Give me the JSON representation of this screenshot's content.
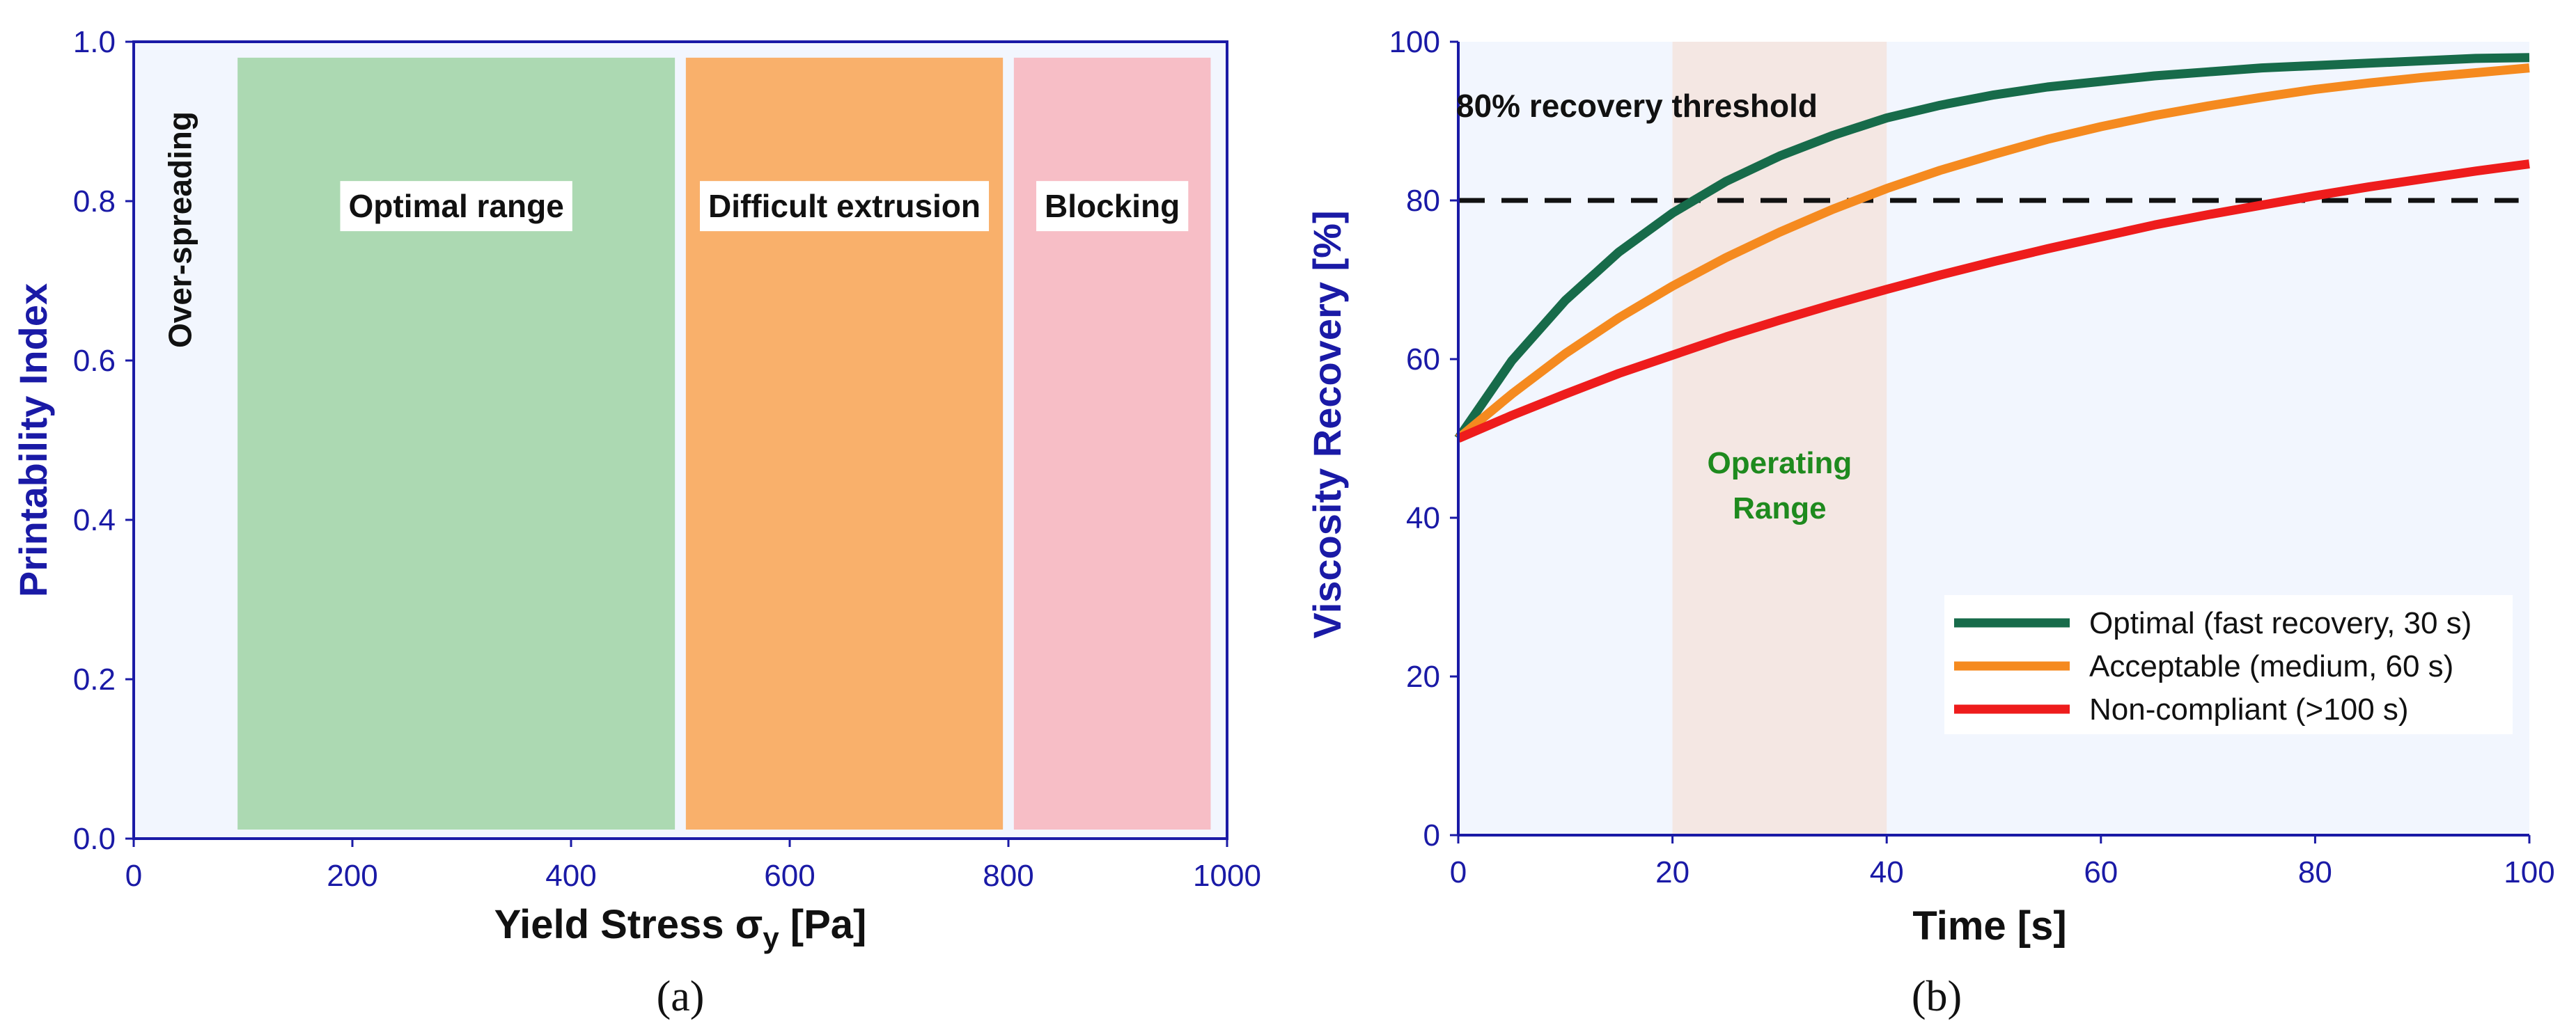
{
  "chart_data": [
    {
      "type": "area",
      "panel_label": "(a)",
      "title": "",
      "xlabel": "Yield Stress σy [Pa]",
      "xlabel_main": "Yield Stress σ",
      "xlabel_sub": "y",
      "xlabel_unit": " [Pa]",
      "ylabel": "Printability Index",
      "xlim": [
        0,
        1000
      ],
      "ylim": [
        0.0,
        1.0
      ],
      "xticks": [
        0,
        200,
        400,
        600,
        800,
        1000
      ],
      "yticks": [
        0.0,
        0.2,
        0.4,
        0.6,
        0.8,
        1.0
      ],
      "xtick_labels": [
        "0",
        "200",
        "400",
        "600",
        "800",
        "1000"
      ],
      "ytick_labels": [
        "0.0",
        "0.2",
        "0.4",
        "0.6",
        "0.8",
        "1.0"
      ],
      "regions": [
        {
          "label": "Over-spreading",
          "x_start": 0,
          "x_end": 95,
          "y_top": 0.98,
          "color": "#f2f6fe",
          "label_orientation": "vertical"
        },
        {
          "label": "Optimal range",
          "x_start": 95,
          "x_end": 495,
          "y_top": 0.98,
          "color": "#acd9b2",
          "label_orientation": "horizontal"
        },
        {
          "label": "Difficult extrusion",
          "x_start": 505,
          "x_end": 795,
          "y_top": 0.98,
          "color": "#f9b06b",
          "label_orientation": "horizontal"
        },
        {
          "label": "Blocking",
          "x_start": 805,
          "x_end": 985,
          "y_top": 0.98,
          "color": "#f7bec6",
          "label_orientation": "horizontal"
        }
      ]
    },
    {
      "type": "line",
      "panel_label": "(b)",
      "title": "",
      "xlabel": "Time [s]",
      "ylabel": "Viscosity Recovery [%]",
      "xlim": [
        0,
        100
      ],
      "ylim": [
        0,
        100
      ],
      "xticks": [
        0,
        20,
        40,
        60,
        80,
        100
      ],
      "yticks": [
        0,
        20,
        40,
        60,
        80,
        100
      ],
      "xtick_labels": [
        "0",
        "20",
        "40",
        "60",
        "80",
        "100"
      ],
      "ytick_labels": [
        "0",
        "20",
        "40",
        "60",
        "80",
        "100"
      ],
      "x": [
        0,
        5,
        10,
        15,
        20,
        25,
        30,
        35,
        40,
        45,
        50,
        55,
        60,
        65,
        70,
        75,
        80,
        85,
        90,
        95,
        100
      ],
      "series": [
        {
          "name": "Optimal (fast recovery, 30 s)",
          "color": "#176b4a",
          "values": [
            50,
            59.8,
            67.4,
            73.5,
            78.4,
            82.4,
            85.6,
            88.2,
            90.4,
            92.0,
            93.3,
            94.3,
            95.0,
            95.7,
            96.2,
            96.7,
            97.0,
            97.3,
            97.6,
            97.9,
            98.0
          ]
        },
        {
          "name": "Acceptable (medium, 60 s)",
          "color": "#f58a1f",
          "values": [
            50,
            55.6,
            60.7,
            65.2,
            69.2,
            72.8,
            76.0,
            78.9,
            81.5,
            83.8,
            85.8,
            87.7,
            89.3,
            90.7,
            91.9,
            93.0,
            94.0,
            94.8,
            95.5,
            96.1,
            96.7
          ]
        },
        {
          "name": "Non-compliant (>100 s)",
          "color": "#ee1c1c",
          "values": [
            50,
            52.9,
            55.6,
            58.2,
            60.5,
            62.8,
            64.9,
            66.9,
            68.8,
            70.6,
            72.3,
            73.9,
            75.4,
            76.9,
            78.2,
            79.4,
            80.6,
            81.7,
            82.7,
            83.7,
            84.6
          ]
        }
      ],
      "threshold": {
        "value": 80,
        "x_start": 0,
        "x_end": 100,
        "label": "80% recovery threshold",
        "style": "dashed",
        "color": "#111111"
      },
      "shaded_region": {
        "x_start": 20,
        "x_end": 40,
        "label_line1": "Operating",
        "label_line2": "Range",
        "color": "#f4e7e3",
        "label_color": "#1e8a1e"
      },
      "background_color": "#f2f6fe",
      "legend_position": "lower-right"
    }
  ]
}
